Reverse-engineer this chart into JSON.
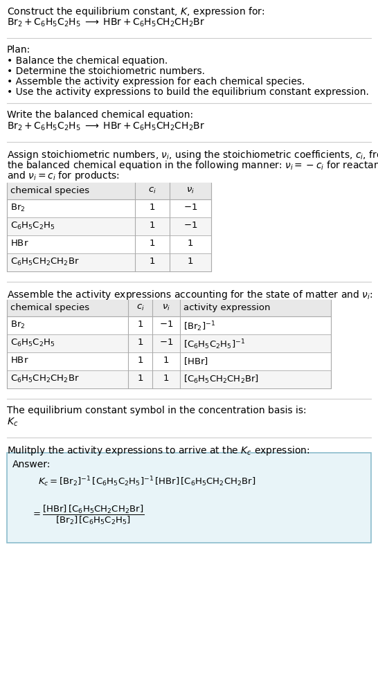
{
  "title_line1": "Construct the equilibrium constant, $K$, expression for:",
  "title_line2": "$\\mathrm{Br_2 + C_6H_5C_2H_5 \\;\\longrightarrow\\; HBr + C_6H_5CH_2CH_2Br}$",
  "plan_header": "Plan:",
  "plan_items": [
    "• Balance the chemical equation.",
    "• Determine the stoichiometric numbers.",
    "• Assemble the activity expression for each chemical species.",
    "• Use the activity expressions to build the equilibrium constant expression."
  ],
  "section2_header": "Write the balanced chemical equation:",
  "section2_eq": "$\\mathrm{Br_2 + C_6H_5C_2H_5 \\;\\longrightarrow\\; HBr + C_6H_5CH_2CH_2Br}$",
  "section3_header_lines": [
    "Assign stoichiometric numbers, $\\nu_i$, using the stoichiometric coefficients, $c_i$, from",
    "the balanced chemical equation in the following manner: $\\nu_i = -c_i$ for reactants",
    "and $\\nu_i = c_i$ for products:"
  ],
  "table1_headers": [
    "chemical species",
    "$c_i$",
    "$\\nu_i$"
  ],
  "table1_rows": [
    [
      "$\\mathrm{Br_2}$",
      "1",
      "$-1$"
    ],
    [
      "$\\mathrm{C_6H_5C_2H_5}$",
      "1",
      "$-1$"
    ],
    [
      "$\\mathrm{HBr}$",
      "1",
      "1"
    ],
    [
      "$\\mathrm{C_6H_5CH_2CH_2Br}$",
      "1",
      "1"
    ]
  ],
  "section4_header": "Assemble the activity expressions accounting for the state of matter and $\\nu_i$:",
  "table2_headers": [
    "chemical species",
    "$c_i$",
    "$\\nu_i$",
    "activity expression"
  ],
  "table2_rows": [
    [
      "$\\mathrm{Br_2}$",
      "1",
      "$-1$",
      "$[\\mathrm{Br_2}]^{-1}$"
    ],
    [
      "$\\mathrm{C_6H_5C_2H_5}$",
      "1",
      "$-1$",
      "$[\\mathrm{C_6H_5C_2H_5}]^{-1}$"
    ],
    [
      "$\\mathrm{HBr}$",
      "1",
      "1",
      "$[\\mathrm{HBr}]$"
    ],
    [
      "$\\mathrm{C_6H_5CH_2CH_2Br}$",
      "1",
      "1",
      "$[\\mathrm{C_6H_5CH_2CH_2Br}]$"
    ]
  ],
  "section5_header": "The equilibrium constant symbol in the concentration basis is:",
  "section5_symbol": "$K_c$",
  "section6_header": "Mulitply the activity expressions to arrive at the $K_c$ expression:",
  "answer_label": "Answer:",
  "answer_line1": "$K_c = [\\mathrm{Br_2}]^{-1}\\,[\\mathrm{C_6H_5C_2H_5}]^{-1}\\,[\\mathrm{HBr}]\\,[\\mathrm{C_6H_5CH_2CH_2Br}]$",
  "answer_eq_lhs": "$= \\dfrac{[\\mathrm{HBr}]\\,[\\mathrm{C_6H_5CH_2CH_2Br}]}{[\\mathrm{Br_2}]\\,[\\mathrm{C_6H_5C_2H_5}]}$",
  "bg_color": "#ffffff",
  "answer_bg": "#e8f4f8",
  "answer_border": "#8bbccc",
  "separator_color": "#cccccc",
  "table_header_bg": "#e8e8e8",
  "table_row_bg": "#f5f5f5",
  "table_border": "#aaaaaa"
}
